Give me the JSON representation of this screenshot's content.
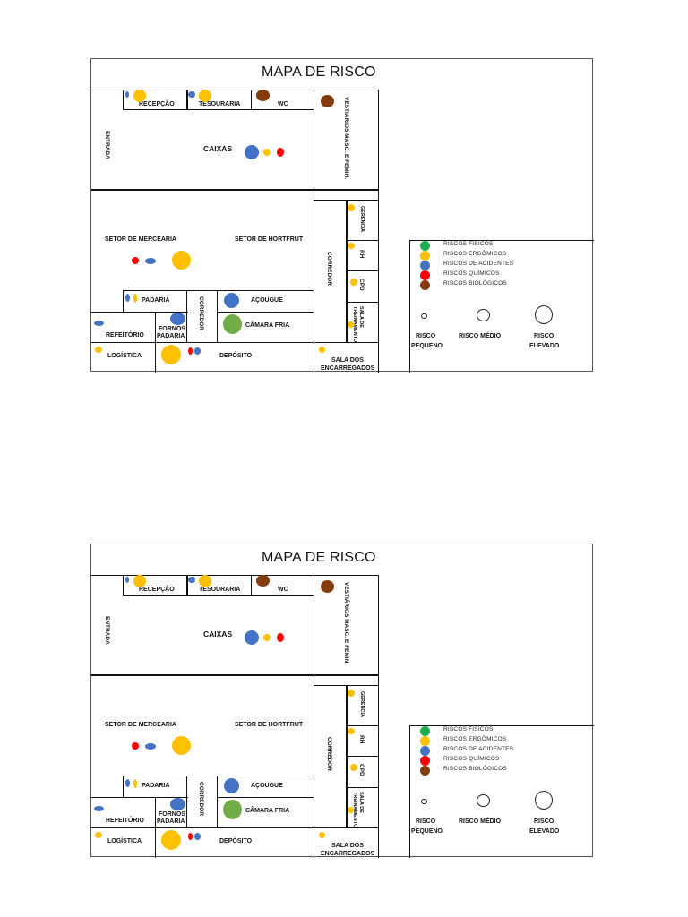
{
  "title": "MAPA DE RISCO",
  "colors": {
    "fisicos": "#1fae4f",
    "ergonomicos": "#ffc000",
    "acidentes": "#4472c4",
    "quimicos": "#ff0000",
    "biologicos": "#843c0c",
    "camara": "#70ad47"
  },
  "rooms": {
    "recepcao": "RECEPÇÃO",
    "tesouraria": "TESOURARIA",
    "wc": "WC",
    "vestiarios": "VESTIÁRIOS MASC. E FEMIN.",
    "entrada": "ENTRADA",
    "caixas": "CAIXAS",
    "mercearia": "SETOR DE MERCEARIA",
    "hortfrut": "SETOR DE HORTFRUT",
    "gerencia": "GERÊNCIA",
    "rh": "RH",
    "cpd": "CPD",
    "treinamento": "SALA DE TREINAMENTO",
    "corredor": "CORREDOR",
    "padaria": "PADARIA",
    "corredor2": "CORREDOR",
    "acougue": "AÇOUGUE",
    "refeitorio": "REFEITÓRIO",
    "fornos_line1": "FORNOS",
    "fornos_line2": "PADARIA",
    "camara_fria": "CÂMARA FRIA",
    "logistica": "LOGÍSTICA",
    "deposito": "DEPÓSITO",
    "encarregados_line1": "SALA DOS",
    "encarregados_line2": "ENCARREGADOS"
  },
  "legend": {
    "items": [
      {
        "label": "RISCOS FÍSICOS",
        "color": "#1fae4f"
      },
      {
        "label": "RISCOS ERGÔMICOS",
        "color": "#ffc000"
      },
      {
        "label": "RISCOS DE ACIDENTES",
        "color": "#4472c4"
      },
      {
        "label": "RISCOS QUÍMICOS",
        "color": "#ff0000"
      },
      {
        "label": "RISCOS BIOLÓGICOS",
        "color": "#843c0c"
      }
    ],
    "sizes": {
      "pequeno_line1": "RISCO",
      "pequeno_line2": "PEQUENO",
      "medio": "RISCO MÉDIO",
      "elevado_line1": "RISCO",
      "elevado_line2": "ELEVADO"
    }
  }
}
